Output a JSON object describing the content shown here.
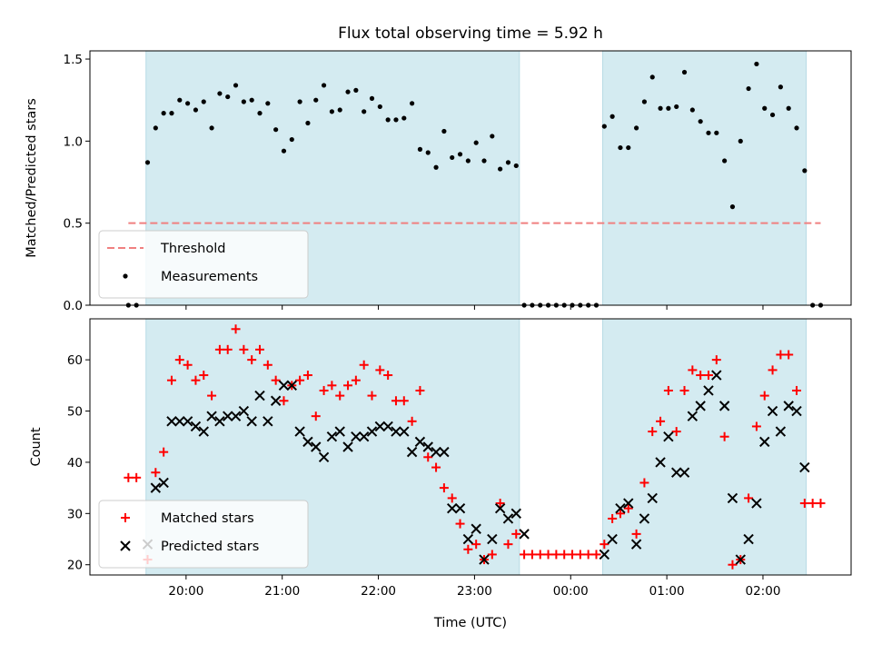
{
  "chart_data": [
    {
      "type": "scatter",
      "title": "Flux total observing time = 5.92 h",
      "xlabel": "",
      "ylabel": "Matched/Predicted stars",
      "ylim": [
        0,
        1.55
      ],
      "yticks": [
        0.0,
        0.5,
        1.0,
        1.5
      ],
      "ytick_labels": [
        "0.0",
        "0.5",
        "1.0",
        "1.5"
      ],
      "xlim": [
        "19:00",
        "02:55"
      ],
      "grid": false,
      "legend_placement": "lower-left",
      "shaded_intervals": [
        [
          "19:35",
          "23:28"
        ],
        [
          "00:20",
          "02:27"
        ]
      ],
      "threshold": {
        "name": "Threshold",
        "value": 0.5,
        "x_range": [
          "19:24",
          "02:36"
        ],
        "color": "#f08080"
      },
      "series": [
        {
          "name": "Measurements",
          "marker": "dot",
          "color": "#000000",
          "points": [
            [
              "19:24",
              0.0
            ],
            [
              "19:29",
              0.0
            ],
            [
              "19:36",
              0.87
            ],
            [
              "19:41",
              1.08
            ],
            [
              "19:46",
              1.17
            ],
            [
              "19:51",
              1.17
            ],
            [
              "19:56",
              1.25
            ],
            [
              "20:01",
              1.23
            ],
            [
              "20:06",
              1.19
            ],
            [
              "20:11",
              1.24
            ],
            [
              "20:16",
              1.08
            ],
            [
              "20:21",
              1.29
            ],
            [
              "20:26",
              1.27
            ],
            [
              "20:31",
              1.34
            ],
            [
              "20:36",
              1.24
            ],
            [
              "20:41",
              1.25
            ],
            [
              "20:46",
              1.17
            ],
            [
              "20:51",
              1.23
            ],
            [
              "20:56",
              1.07
            ],
            [
              "21:01",
              0.94
            ],
            [
              "21:06",
              1.01
            ],
            [
              "21:11",
              1.24
            ],
            [
              "21:16",
              1.11
            ],
            [
              "21:21",
              1.25
            ],
            [
              "21:26",
              1.34
            ],
            [
              "21:31",
              1.18
            ],
            [
              "21:36",
              1.19
            ],
            [
              "21:41",
              1.3
            ],
            [
              "21:46",
              1.31
            ],
            [
              "21:51",
              1.18
            ],
            [
              "21:56",
              1.26
            ],
            [
              "22:01",
              1.21
            ],
            [
              "22:06",
              1.13
            ],
            [
              "22:11",
              1.13
            ],
            [
              "22:16",
              1.14
            ],
            [
              "22:21",
              1.23
            ],
            [
              "22:26",
              0.95
            ],
            [
              "22:31",
              0.93
            ],
            [
              "22:36",
              0.84
            ],
            [
              "22:41",
              1.06
            ],
            [
              "22:46",
              0.9
            ],
            [
              "22:51",
              0.92
            ],
            [
              "22:56",
              0.88
            ],
            [
              "23:01",
              0.99
            ],
            [
              "23:06",
              0.88
            ],
            [
              "23:11",
              1.03
            ],
            [
              "23:16",
              0.83
            ],
            [
              "23:21",
              0.87
            ],
            [
              "23:26",
              0.85
            ],
            [
              "23:31",
              0.0
            ],
            [
              "23:36",
              0.0
            ],
            [
              "23:41",
              0.0
            ],
            [
              "23:46",
              0.0
            ],
            [
              "23:51",
              0.0
            ],
            [
              "23:56",
              0.0
            ],
            [
              "00:01",
              0.0
            ],
            [
              "00:06",
              0.0
            ],
            [
              "00:11",
              0.0
            ],
            [
              "00:16",
              0.0
            ],
            [
              "00:21",
              1.09
            ],
            [
              "00:26",
              1.15
            ],
            [
              "00:31",
              0.96
            ],
            [
              "00:36",
              0.96
            ],
            [
              "00:41",
              1.08
            ],
            [
              "00:46",
              1.24
            ],
            [
              "00:51",
              1.39
            ],
            [
              "00:56",
              1.2
            ],
            [
              "01:01",
              1.2
            ],
            [
              "01:06",
              1.21
            ],
            [
              "01:11",
              1.42
            ],
            [
              "01:16",
              1.19
            ],
            [
              "01:21",
              1.12
            ],
            [
              "01:26",
              1.05
            ],
            [
              "01:31",
              1.05
            ],
            [
              "01:36",
              0.88
            ],
            [
              "01:41",
              0.6
            ],
            [
              "01:46",
              1.0
            ],
            [
              "01:51",
              1.32
            ],
            [
              "01:56",
              1.47
            ],
            [
              "02:01",
              1.2
            ],
            [
              "02:06",
              1.16
            ],
            [
              "02:11",
              1.33
            ],
            [
              "02:16",
              1.2
            ],
            [
              "02:21",
              1.08
            ],
            [
              "02:26",
              0.82
            ],
            [
              "02:31",
              0.0
            ],
            [
              "02:36",
              0.0
            ]
          ]
        }
      ]
    },
    {
      "type": "scatter",
      "title": "",
      "xlabel": "Time (UTC)",
      "ylabel": "Count",
      "ylim": [
        18,
        68
      ],
      "yticks": [
        20,
        30,
        40,
        50,
        60
      ],
      "ytick_labels": [
        "20",
        "30",
        "40",
        "50",
        "60"
      ],
      "xlim": [
        "19:00",
        "02:55"
      ],
      "xticks": [
        "20:00",
        "21:00",
        "22:00",
        "23:00",
        "00:00",
        "01:00",
        "02:00"
      ],
      "grid": false,
      "legend_placement": "lower-left",
      "shaded_intervals": [
        [
          "19:35",
          "23:28"
        ],
        [
          "00:20",
          "02:27"
        ]
      ],
      "series": [
        {
          "name": "Matched stars",
          "marker": "plus",
          "color": "#ff0000",
          "points": [
            [
              "19:24",
              37
            ],
            [
              "19:29",
              37
            ],
            [
              "19:36",
              21
            ],
            [
              "19:41",
              38
            ],
            [
              "19:46",
              42
            ],
            [
              "19:51",
              56
            ],
            [
              "19:56",
              60
            ],
            [
              "20:01",
              59
            ],
            [
              "20:06",
              56
            ],
            [
              "20:11",
              57
            ],
            [
              "20:16",
              53
            ],
            [
              "20:21",
              62
            ],
            [
              "20:26",
              62
            ],
            [
              "20:31",
              66
            ],
            [
              "20:36",
              62
            ],
            [
              "20:41",
              60
            ],
            [
              "20:46",
              62
            ],
            [
              "20:51",
              59
            ],
            [
              "20:56",
              56
            ],
            [
              "21:01",
              52
            ],
            [
              "21:06",
              55
            ],
            [
              "21:11",
              56
            ],
            [
              "21:16",
              57
            ],
            [
              "21:21",
              49
            ],
            [
              "21:26",
              54
            ],
            [
              "21:31",
              55
            ],
            [
              "21:36",
              53
            ],
            [
              "21:41",
              55
            ],
            [
              "21:46",
              56
            ],
            [
              "21:51",
              59
            ],
            [
              "21:56",
              53
            ],
            [
              "22:01",
              58
            ],
            [
              "22:06",
              57
            ],
            [
              "22:11",
              52
            ],
            [
              "22:16",
              52
            ],
            [
              "22:21",
              48
            ],
            [
              "22:26",
              54
            ],
            [
              "22:31",
              41
            ],
            [
              "22:36",
              39
            ],
            [
              "22:41",
              35
            ],
            [
              "22:46",
              33
            ],
            [
              "22:51",
              28
            ],
            [
              "22:56",
              23
            ],
            [
              "23:01",
              24
            ],
            [
              "23:06",
              21
            ],
            [
              "23:11",
              22
            ],
            [
              "23:16",
              32
            ],
            [
              "23:21",
              24
            ],
            [
              "23:26",
              26
            ],
            [
              "23:31",
              22
            ],
            [
              "23:36",
              22
            ],
            [
              "23:41",
              22
            ],
            [
              "23:46",
              22
            ],
            [
              "23:51",
              22
            ],
            [
              "23:56",
              22
            ],
            [
              "00:01",
              22
            ],
            [
              "00:06",
              22
            ],
            [
              "00:11",
              22
            ],
            [
              "00:16",
              22
            ],
            [
              "00:21",
              24
            ],
            [
              "00:26",
              29
            ],
            [
              "00:31",
              30
            ],
            [
              "00:36",
              31
            ],
            [
              "00:41",
              26
            ],
            [
              "00:46",
              36
            ],
            [
              "00:51",
              46
            ],
            [
              "00:56",
              48
            ],
            [
              "01:01",
              54
            ],
            [
              "01:06",
              46
            ],
            [
              "01:11",
              54
            ],
            [
              "01:16",
              58
            ],
            [
              "01:21",
              57
            ],
            [
              "01:26",
              57
            ],
            [
              "01:31",
              60
            ],
            [
              "01:36",
              45
            ],
            [
              "01:41",
              20
            ],
            [
              "01:46",
              21
            ],
            [
              "01:51",
              33
            ],
            [
              "01:56",
              47
            ],
            [
              "02:01",
              53
            ],
            [
              "02:06",
              58
            ],
            [
              "02:11",
              61
            ],
            [
              "02:16",
              61
            ],
            [
              "02:21",
              54
            ],
            [
              "02:26",
              32
            ],
            [
              "02:31",
              32
            ],
            [
              "02:36",
              32
            ]
          ]
        },
        {
          "name": "Predicted stars",
          "marker": "x",
          "color": "#000000",
          "points": [
            [
              "19:36",
              24
            ],
            [
              "19:41",
              35
            ],
            [
              "19:46",
              36
            ],
            [
              "19:51",
              48
            ],
            [
              "19:56",
              48
            ],
            [
              "20:01",
              48
            ],
            [
              "20:06",
              47
            ],
            [
              "20:11",
              46
            ],
            [
              "20:16",
              49
            ],
            [
              "20:21",
              48
            ],
            [
              "20:26",
              49
            ],
            [
              "20:31",
              49
            ],
            [
              "20:36",
              50
            ],
            [
              "20:41",
              48
            ],
            [
              "20:46",
              53
            ],
            [
              "20:51",
              48
            ],
            [
              "20:56",
              52
            ],
            [
              "21:01",
              55
            ],
            [
              "21:06",
              55
            ],
            [
              "21:11",
              46
            ],
            [
              "21:16",
              44
            ],
            [
              "21:21",
              43
            ],
            [
              "21:26",
              41
            ],
            [
              "21:31",
              45
            ],
            [
              "21:36",
              46
            ],
            [
              "21:41",
              43
            ],
            [
              "21:46",
              45
            ],
            [
              "21:51",
              45
            ],
            [
              "21:56",
              46
            ],
            [
              "22:01",
              47
            ],
            [
              "22:06",
              47
            ],
            [
              "22:11",
              46
            ],
            [
              "22:16",
              46
            ],
            [
              "22:21",
              42
            ],
            [
              "22:26",
              44
            ],
            [
              "22:31",
              43
            ],
            [
              "22:36",
              42
            ],
            [
              "22:41",
              42
            ],
            [
              "22:46",
              31
            ],
            [
              "22:51",
              31
            ],
            [
              "22:56",
              25
            ],
            [
              "23:01",
              27
            ],
            [
              "23:06",
              21
            ],
            [
              "23:11",
              25
            ],
            [
              "23:16",
              31
            ],
            [
              "23:21",
              29
            ],
            [
              "23:26",
              30
            ],
            [
              "23:31",
              26
            ],
            [
              "00:21",
              22
            ],
            [
              "00:26",
              25
            ],
            [
              "00:31",
              31
            ],
            [
              "00:36",
              32
            ],
            [
              "00:41",
              24
            ],
            [
              "00:46",
              29
            ],
            [
              "00:51",
              33
            ],
            [
              "00:56",
              40
            ],
            [
              "01:01",
              45
            ],
            [
              "01:06",
              38
            ],
            [
              "01:11",
              38
            ],
            [
              "01:16",
              49
            ],
            [
              "01:21",
              51
            ],
            [
              "01:26",
              54
            ],
            [
              "01:31",
              57
            ],
            [
              "01:36",
              51
            ],
            [
              "01:41",
              33
            ],
            [
              "01:46",
              21
            ],
            [
              "01:51",
              25
            ],
            [
              "01:56",
              32
            ],
            [
              "02:01",
              44
            ],
            [
              "02:06",
              50
            ],
            [
              "02:11",
              46
            ],
            [
              "02:16",
              51
            ],
            [
              "02:21",
              50
            ],
            [
              "02:26",
              39
            ]
          ]
        }
      ]
    }
  ]
}
